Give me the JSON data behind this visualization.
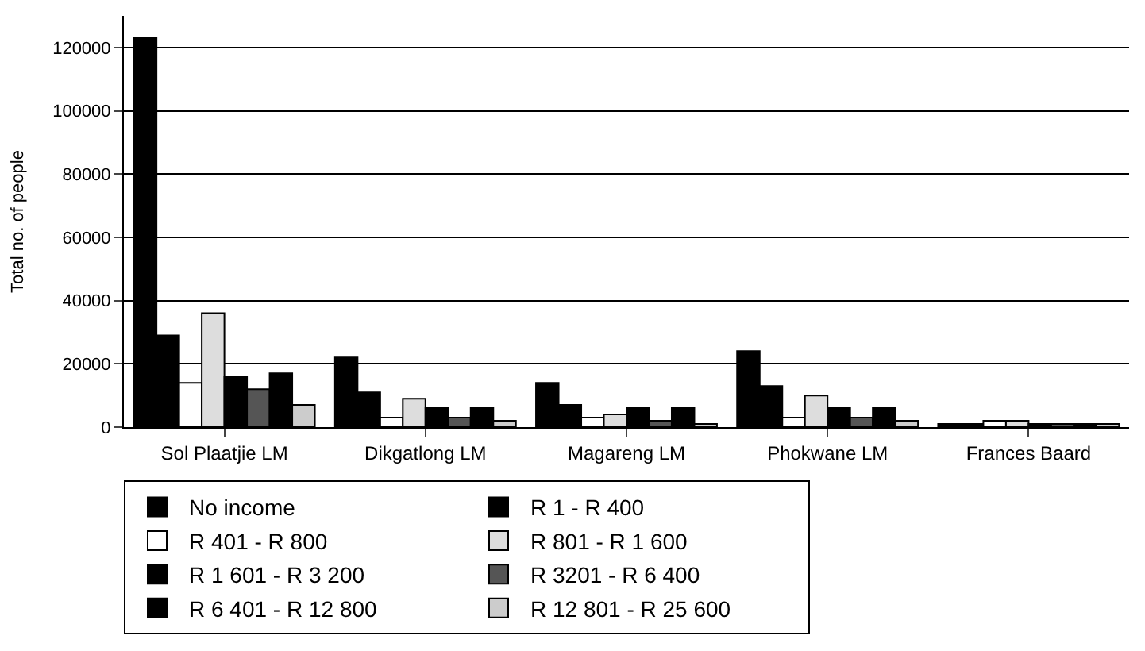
{
  "chart_data": {
    "type": "bar",
    "ylabel": "Total no. of people",
    "categories": [
      "Sol Plaatjie LM",
      "Dikgatlong LM",
      "Magareng LM",
      "Phokwane LM",
      "Frances Baard"
    ],
    "series": [
      {
        "name": "No income",
        "color": "#000000",
        "values": [
          123000,
          22000,
          14000,
          24000,
          1000
        ]
      },
      {
        "name": "R 1 - R 400",
        "color": "#000000",
        "values": [
          29000,
          11000,
          7000,
          13000,
          1000
        ]
      },
      {
        "name": "R 401 - R 800",
        "color": "#ffffff",
        "values": [
          14000,
          3000,
          3000,
          3000,
          2000
        ]
      },
      {
        "name": "R 801 - R 1 600",
        "color": "#dddddd",
        "values": [
          36000,
          9000,
          4000,
          10000,
          2000
        ]
      },
      {
        "name": "R 1 601 - R 3 200",
        "color": "#000000",
        "values": [
          16000,
          6000,
          6000,
          6000,
          1000
        ]
      },
      {
        "name": "R 3201 - R 6 400",
        "color": "#555555",
        "values": [
          12000,
          3000,
          2000,
          3000,
          1000
        ]
      },
      {
        "name": "R 6 401 - R 12 800",
        "color": "#000000",
        "values": [
          17000,
          6000,
          6000,
          6000,
          1000
        ]
      },
      {
        "name": "R 12 801 - R 25 600",
        "color": "#cccccc",
        "values": [
          7000,
          2000,
          1000,
          2000,
          1000
        ]
      }
    ],
    "ylim": [
      0,
      130000
    ],
    "yticks": [
      0,
      20000,
      40000,
      60000,
      80000,
      100000,
      120000
    ],
    "grid": "y",
    "legend": "bottom"
  }
}
